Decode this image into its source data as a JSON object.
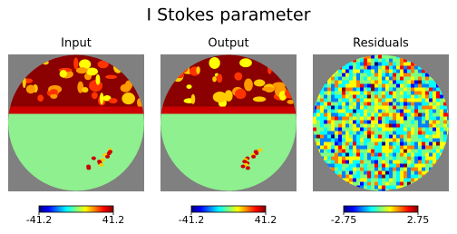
{
  "title": "I Stokes parameter",
  "chart_data": [
    {
      "type": "map",
      "title": "Input",
      "clim": [
        -41.2,
        41.2
      ],
      "cticks": [
        -41.2,
        41.2
      ]
    },
    {
      "type": "map",
      "title": "Output",
      "clim": [
        -41.2,
        41.2
      ],
      "cticks": [
        -41.2,
        41.2
      ]
    },
    {
      "type": "residual-map",
      "title": "Residuals",
      "clim": [
        -2.75,
        2.75
      ],
      "cticks": [
        -2.75,
        2.75
      ]
    }
  ]
}
